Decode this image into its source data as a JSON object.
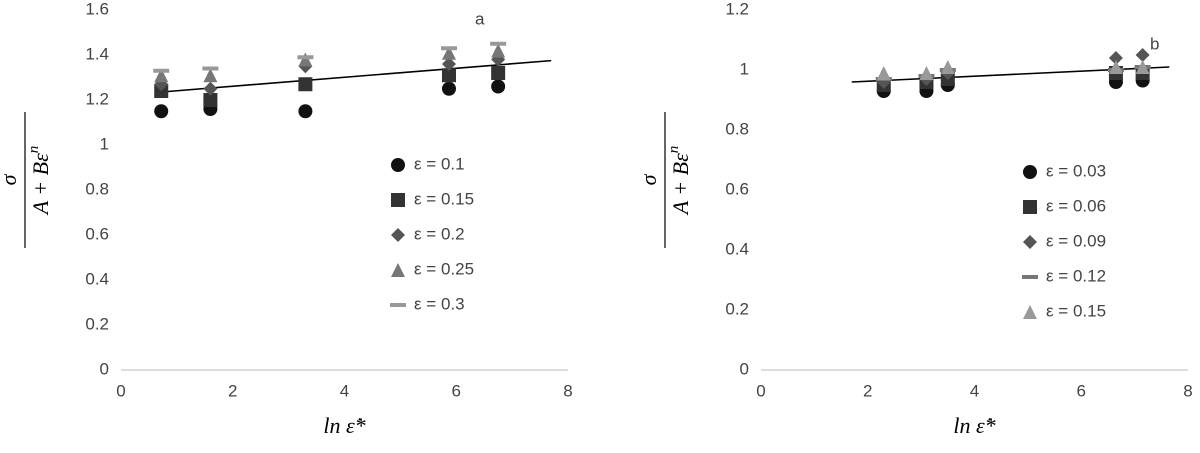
{
  "chart_data": [
    {
      "type": "scatter",
      "panel_label": "a",
      "xlabel": "ln ε̇*",
      "ylabel": {
        "numerator": "σ",
        "denominator": "A + Bε",
        "exponent": "n"
      },
      "x": [
        0.72,
        1.6,
        3.3,
        5.87,
        6.75
      ],
      "xlim": [
        0,
        8
      ],
      "xticks": [
        0,
        2,
        4,
        6,
        8
      ],
      "ylim": [
        0,
        1.6
      ],
      "yticks": [
        0,
        0.2,
        0.4,
        0.6,
        0.8,
        1,
        1.2,
        1.4,
        1.6
      ],
      "legend": "right",
      "series": [
        {
          "name": "ε = 0.1",
          "color": "#111111",
          "marker": "circle",
          "values": [
            1.15,
            1.16,
            1.15,
            1.25,
            1.26
          ]
        },
        {
          "name": "ε = 0.15",
          "color": "#333333",
          "marker": "square",
          "values": [
            1.24,
            1.2,
            1.27,
            1.31,
            1.32
          ]
        },
        {
          "name": "ε = 0.2",
          "color": "#555555",
          "marker": "diamond",
          "values": [
            1.27,
            1.25,
            1.35,
            1.36,
            1.38
          ]
        },
        {
          "name": "ε = 0.25",
          "color": "#777777",
          "marker": "triangle",
          "values": [
            1.31,
            1.31,
            1.38,
            1.41,
            1.42
          ]
        },
        {
          "name": "ε = 0.3",
          "color": "#999999",
          "marker": "dash",
          "values": [
            1.33,
            1.34,
            1.39,
            1.43,
            1.45
          ]
        }
      ],
      "trend": {
        "color": "#000000",
        "x": [
          0.7,
          7.7
        ],
        "y": [
          1.235,
          1.375
        ]
      }
    },
    {
      "type": "scatter",
      "panel_label": "b",
      "xlabel": "ln ε̇*",
      "ylabel": {
        "numerator": "σ",
        "denominator": "A + Bε",
        "exponent": "n"
      },
      "x": [
        2.3,
        3.1,
        3.5,
        6.65,
        7.15
      ],
      "xlim": [
        0,
        8
      ],
      "xticks": [
        0,
        2,
        4,
        6,
        8
      ],
      "ylim": [
        0,
        1.2
      ],
      "yticks": [
        0,
        0.2,
        0.4,
        0.6,
        0.8,
        1,
        1.2
      ],
      "legend": "right",
      "series": [
        {
          "name": "ε = 0.03",
          "color": "#111111",
          "marker": "circle",
          "values": [
            0.93,
            0.93,
            0.95,
            0.96,
            0.965
          ]
        },
        {
          "name": "ε = 0.06",
          "color": "#333333",
          "marker": "square",
          "values": [
            0.95,
            0.96,
            0.97,
            0.99,
            0.99
          ]
        },
        {
          "name": "ε = 0.09",
          "color": "#555555",
          "marker": "diamond",
          "values": [
            0.96,
            0.97,
            0.99,
            1.04,
            1.05
          ]
        },
        {
          "name": "ε = 0.12",
          "color": "#777777",
          "marker": "dash",
          "values": [
            0.97,
            0.98,
            1.0,
            1.0,
            1.01
          ]
        },
        {
          "name": "ε = 0.15",
          "color": "#999999",
          "marker": "triangle",
          "values": [
            0.99,
            0.99,
            1.01,
            1.01,
            1.01
          ]
        }
      ],
      "trend": {
        "color": "#000000",
        "x": [
          1.7,
          7.65
        ],
        "y": [
          0.96,
          1.01
        ]
      }
    }
  ]
}
